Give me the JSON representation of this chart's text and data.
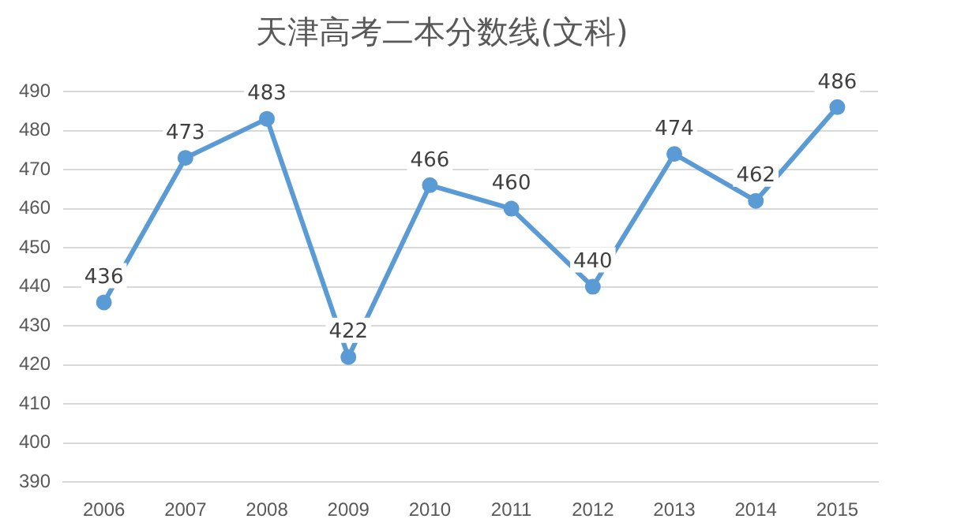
{
  "chart_data": {
    "type": "line",
    "title": "天津高考二本分数线(文科)",
    "categories": [
      "2006",
      "2007",
      "2008",
      "2009",
      "2010",
      "2011",
      "2012",
      "2013",
      "2014",
      "2015"
    ],
    "series": [
      {
        "color": "#5b9bd5",
        "values": [
          436,
          473,
          483,
          422,
          466,
          460,
          440,
          474,
          462,
          486
        ]
      }
    ],
    "ylim": [
      390,
      490
    ],
    "yticks": [
      390,
      400,
      410,
      420,
      430,
      440,
      450,
      460,
      470,
      480,
      490
    ],
    "grid": "y",
    "marker": "circle",
    "line_style": "solid",
    "data_labels": true,
    "legend": false
  }
}
